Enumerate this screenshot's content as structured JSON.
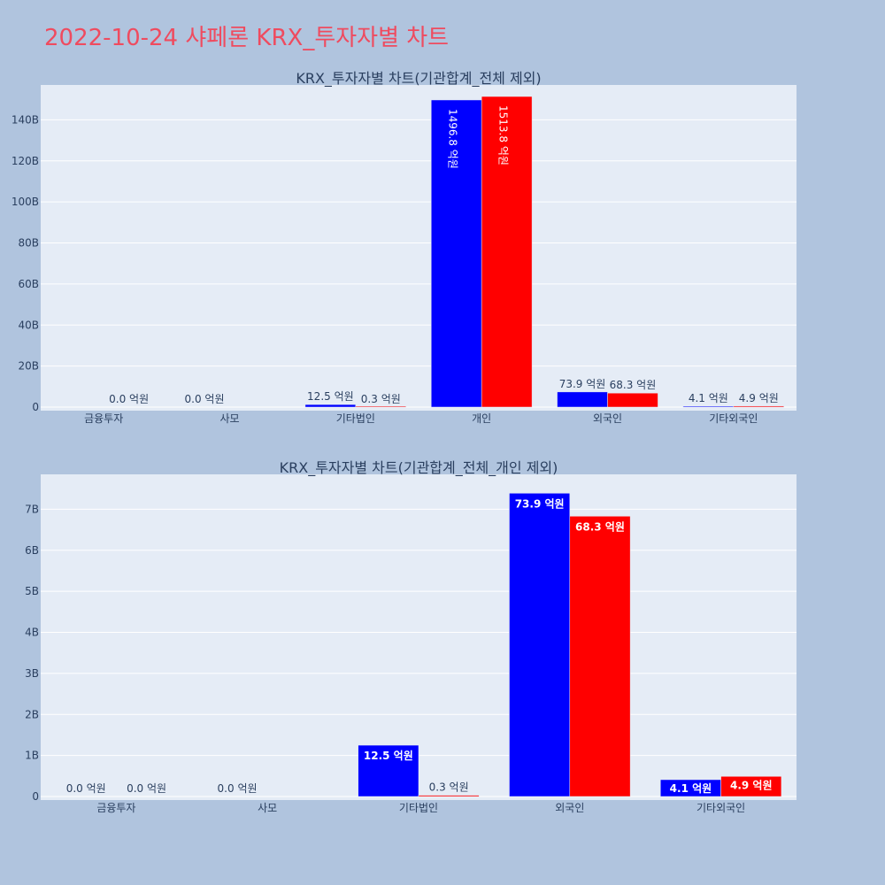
{
  "page": {
    "title": "2022-10-24 샤페론 KRX_투자자별 차트",
    "background": "#b0c4de",
    "title_color": "#ef4b5f"
  },
  "colors": {
    "plot_bg": "#e5ecf6",
    "grid": "#ffffff",
    "series_a": "#0000ff",
    "series_b": "#ff0000",
    "text": "#2a3f5f"
  },
  "chart_data": [
    {
      "type": "bar",
      "title": "KRX_투자자별 차트(기관합계_전체 제외)",
      "categories": [
        "금융투자",
        "사모",
        "기타법인",
        "개인",
        "외국인",
        "기타외국인"
      ],
      "series": [
        {
          "color": "#0000ff",
          "values": [
            0.0,
            0.0,
            1250000000,
            149680000000,
            7390000000,
            410000000
          ],
          "labels": [
            null,
            "0.0 억원",
            "12.5 억원",
            "1496.8 억원",
            "73.9 억원",
            "4.1 억원"
          ]
        },
        {
          "color": "#ff0000",
          "values": [
            0.0,
            null,
            30000000,
            151380000000,
            6830000000,
            490000000
          ],
          "labels": [
            "0.0 억원",
            null,
            "0.3 억원",
            "1513.8 억원",
            "68.3 억원",
            "4.9 억원"
          ]
        }
      ],
      "yticks": [
        0,
        20000000000,
        40000000000,
        60000000000,
        80000000000,
        100000000000,
        120000000000,
        140000000000
      ],
      "ytick_labels": [
        "0",
        "20B",
        "40B",
        "60B",
        "80B",
        "100B",
        "120B",
        "140B"
      ],
      "ylim": [
        0,
        157000000000
      ],
      "grid": true
    },
    {
      "type": "bar",
      "title": "KRX_투자자별 차트(기관합계_전체_개인 제외)",
      "categories": [
        "금융투자",
        "사모",
        "기타법인",
        "외국인",
        "기타외국인"
      ],
      "series": [
        {
          "color": "#0000ff",
          "values": [
            0.0,
            0.0,
            1250000000,
            7390000000,
            410000000
          ],
          "labels": [
            "0.0 억원",
            "0.0 억원",
            "12.5 억원",
            "73.9 억원",
            "4.1 억원"
          ]
        },
        {
          "color": "#ff0000",
          "values": [
            0.0,
            null,
            30000000,
            6830000000,
            490000000
          ],
          "labels": [
            "0.0 억원",
            null,
            "0.3 억원",
            "68.3 억원",
            "4.9 억원"
          ]
        }
      ],
      "yticks": [
        0,
        1000000000,
        2000000000,
        3000000000,
        4000000000,
        5000000000,
        6000000000,
        7000000000
      ],
      "ytick_labels": [
        "0",
        "1B",
        "2B",
        "3B",
        "4B",
        "5B",
        "6B",
        "7B"
      ],
      "ylim": [
        0,
        7850000000
      ],
      "grid": true
    }
  ]
}
